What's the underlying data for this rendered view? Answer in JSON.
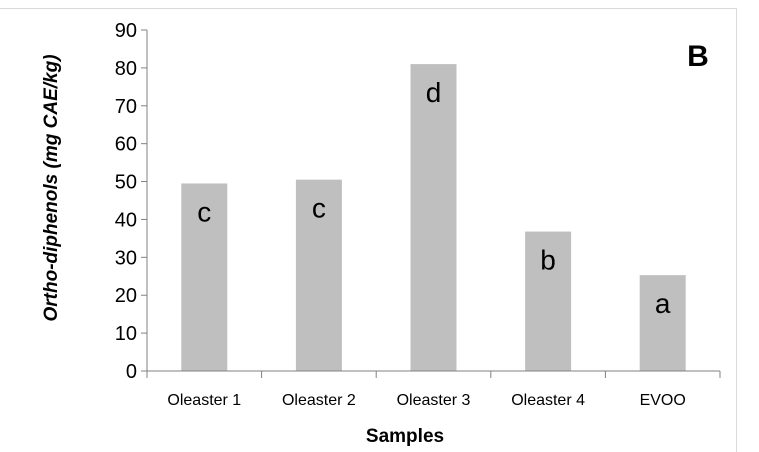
{
  "chart_data": {
    "type": "bar",
    "panel_label": "B",
    "categories": [
      "Oleaster 1",
      "Oleaster 2",
      "Oleaster 3",
      "Oleaster 4",
      "EVOO"
    ],
    "values": [
      49.5,
      50.5,
      81,
      36.8,
      25.3
    ],
    "letters": [
      "c",
      "c",
      "d",
      "b",
      "a"
    ],
    "xlabel": "Samples",
    "ylabel": "Ortho-diphenols (mg CAE/kg)",
    "ylim": [
      0,
      90
    ],
    "yticks": [
      0,
      10,
      20,
      30,
      40,
      50,
      60,
      70,
      80,
      90
    ],
    "bar_color": "#bfbfbf",
    "grid": false,
    "legend": "none"
  }
}
